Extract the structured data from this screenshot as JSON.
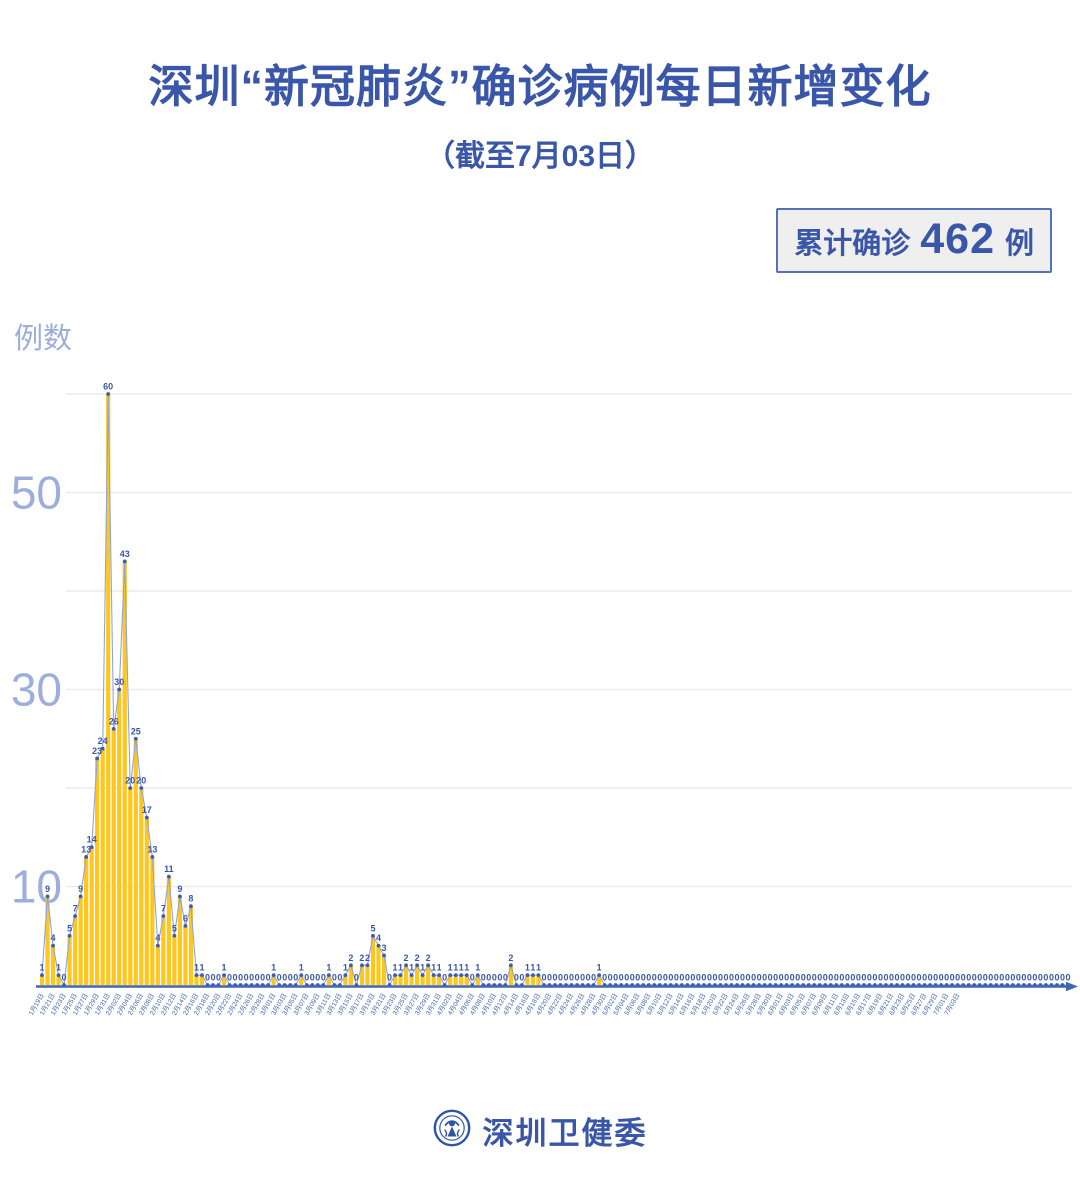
{
  "header": {
    "title": "深圳“新冠肺炎”确诊病例每日新增变化",
    "subtitle": "（截至7月03日）"
  },
  "summary_badge": {
    "label": "累计确诊",
    "value": "462",
    "unit": "例"
  },
  "colors": {
    "primary_blue": "#3A56A8",
    "bar_yellow": "#FFC61E",
    "line_blue": "#8FA5D9",
    "dot_blue": "#3B5CB0",
    "axis_blue": "#4265B2",
    "tick_label_blue": "#9DAEDD",
    "gridline_gray": "#ebebeb",
    "badge_bg": "#efefef"
  },
  "chart_data": {
    "type": "bar",
    "overlay": "line",
    "title": "深圳“新冠肺炎”确诊病例每日新增变化",
    "xlabel": "",
    "ylabel": "例数",
    "ylim": [
      0,
      60
    ],
    "y_ticks_labeled": [
      10,
      30,
      50
    ],
    "grid_step": 10,
    "grid": "horizontal",
    "legend_position": "none",
    "point_labels": "all values shown above each point",
    "x_start": "1月19日",
    "x_end": "7月03日",
    "x_label_every": 2,
    "x_labels": [
      "1月19日",
      "1月21日",
      "1月23日",
      "1月25日",
      "1月27日",
      "1月29日",
      "1月31日",
      "2月02日",
      "2月04日",
      "2月06日",
      "2月08日",
      "2月10日",
      "2月12日",
      "2月14日",
      "2月16日",
      "2月18日",
      "2月20日",
      "2月22日",
      "2月24日",
      "2月26日",
      "2月28日",
      "3月01日",
      "3月03日",
      "3月05日",
      "3月07日",
      "3月09日",
      "3月11日",
      "3月13日",
      "3月15日",
      "3月17日",
      "3月19日",
      "3月21日",
      "3月23日",
      "3月25日",
      "3月27日",
      "3月29日",
      "3月31日",
      "4月02日",
      "4月04日",
      "4月06日",
      "4月08日",
      "4月10日",
      "4月12日",
      "4月14日",
      "4月16日",
      "4月18日",
      "4月20日",
      "4月22日",
      "4月24日",
      "4月26日",
      "4月28日",
      "4月30日",
      "5月02日",
      "5月04日",
      "5月06日",
      "5月08日",
      "5月10日",
      "5月12日",
      "5月14日",
      "5月16日",
      "5月18日",
      "5月20日",
      "5月22日",
      "5月24日",
      "5月26日",
      "5月28日",
      "5月30日",
      "6月01日",
      "6月03日",
      "6月05日",
      "6月07日",
      "6月09日",
      "6月11日",
      "6月13日",
      "6月15日",
      "6月17日",
      "6月19日",
      "6月21日",
      "6月23日",
      "6月25日",
      "6月27日",
      "6月29日",
      "7月01日",
      "7月03日"
    ],
    "values": [
      1,
      9,
      4,
      1,
      0,
      5,
      7,
      9,
      13,
      14,
      23,
      24,
      60,
      26,
      30,
      43,
      20,
      25,
      20,
      17,
      13,
      4,
      7,
      11,
      5,
      9,
      6,
      8,
      1,
      1,
      0,
      0,
      0,
      1,
      0,
      0,
      0,
      0,
      0,
      0,
      0,
      0,
      1,
      0,
      0,
      0,
      0,
      1,
      0,
      0,
      0,
      0,
      1,
      0,
      0,
      1,
      2,
      0,
      2,
      2,
      5,
      4,
      3,
      0,
      1,
      1,
      2,
      1,
      2,
      1,
      2,
      1,
      1,
      0,
      1,
      1,
      1,
      1,
      0,
      1,
      0,
      0,
      0,
      0,
      0,
      2,
      0,
      0,
      1,
      1,
      1,
      0,
      0,
      0,
      0,
      0,
      0,
      0,
      0,
      0,
      0,
      1,
      0,
      0,
      0,
      0,
      0,
      0,
      0,
      0,
      0,
      0,
      0,
      0,
      0,
      0,
      0,
      0,
      0,
      0,
      0,
      0,
      0,
      0,
      0,
      0,
      0,
      0,
      0,
      0,
      0,
      0,
      0,
      0,
      0,
      0,
      0,
      0,
      0,
      0,
      0,
      0,
      0,
      0,
      0,
      0,
      0,
      0,
      0,
      0,
      0,
      0,
      0,
      0,
      0,
      0,
      0,
      0,
      0,
      0,
      0,
      0,
      0,
      0,
      0,
      0,
      0,
      0,
      0,
      0,
      0,
      0,
      0,
      0,
      0,
      0,
      0,
      0,
      0,
      0,
      0,
      0,
      0,
      0,
      0,
      0,
      0
    ],
    "cumulative_total": 462
  },
  "footer": {
    "org": "深圳卫健委",
    "logo": "shenzhen-health-commission-emblem"
  }
}
